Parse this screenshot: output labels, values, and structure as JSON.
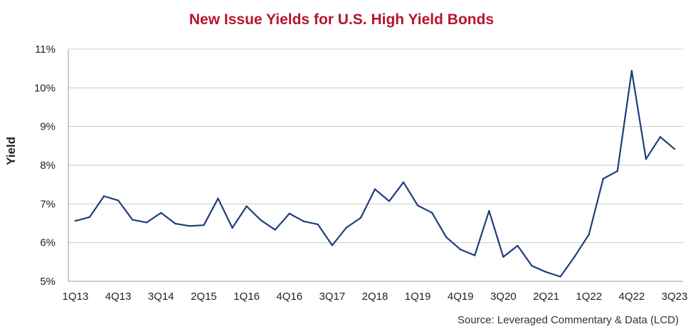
{
  "chart_data": {
    "type": "line",
    "title": "New Issue Yields for U.S. High Yield Bonds",
    "ylabel": "Yield",
    "xlabel": "",
    "source": "Source: Leveraged Commentary & Data (LCD)",
    "ylim": [
      5,
      11
    ],
    "yticks": [
      "5%",
      "6%",
      "7%",
      "8%",
      "9%",
      "10%",
      "11%"
    ],
    "grid": true,
    "line_color": "#1f3e7a",
    "title_color": "#b5162b",
    "x": [
      "1Q13",
      "2Q13",
      "3Q13",
      "4Q13",
      "1Q14",
      "2Q14",
      "3Q14",
      "4Q14",
      "1Q15",
      "2Q15",
      "3Q15",
      "4Q15",
      "1Q16",
      "2Q16",
      "3Q16",
      "4Q16",
      "1Q17",
      "2Q17",
      "3Q17",
      "4Q17",
      "1Q18",
      "2Q18",
      "3Q18",
      "4Q18",
      "1Q19",
      "2Q19",
      "3Q19",
      "4Q19",
      "1Q20",
      "2Q20",
      "3Q20",
      "4Q20",
      "1Q21",
      "2Q21",
      "3Q21",
      "4Q21",
      "1Q22",
      "2Q22",
      "3Q22",
      "4Q22",
      "1Q23",
      "2Q23",
      "3Q23"
    ],
    "xticks": [
      "1Q13",
      "4Q13",
      "3Q14",
      "2Q15",
      "1Q16",
      "4Q16",
      "3Q17",
      "2Q18",
      "1Q19",
      "4Q19",
      "3Q20",
      "2Q21",
      "1Q22",
      "4Q22",
      "3Q23"
    ],
    "series": [
      {
        "values": [
          6.56,
          6.66,
          7.2,
          7.09,
          6.59,
          6.52,
          6.77,
          6.49,
          6.43,
          6.45,
          7.14,
          6.38,
          6.94,
          6.58,
          6.33,
          6.75,
          6.55,
          6.47,
          5.93,
          6.39,
          6.64,
          7.38,
          7.07,
          7.56,
          6.96,
          6.77,
          6.14,
          5.82,
          5.67,
          6.82,
          5.63,
          5.92,
          5.4,
          5.24,
          5.12,
          5.64,
          6.21,
          7.65,
          7.85,
          10.44,
          8.16,
          8.73,
          8.42
        ]
      }
    ]
  }
}
